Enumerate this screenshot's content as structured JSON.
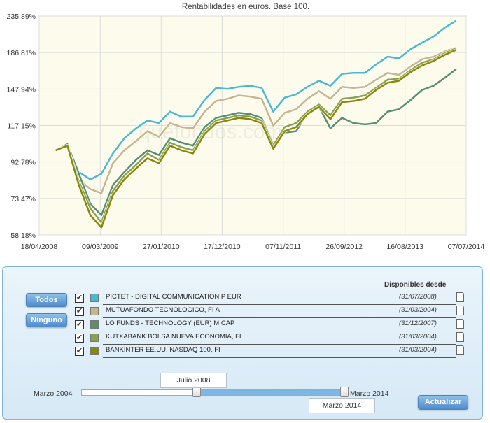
{
  "chart_data": {
    "type": "line",
    "title": "Rentabilidades en euros. Base 100.",
    "y_scale": "log",
    "ylim": [
      58.18,
      235.89
    ],
    "y_ticks": [
      "235.89%",
      "186.81%",
      "147.94%",
      "117.15%",
      "92.78%",
      "73.47%",
      "58.18%"
    ],
    "y_tick_values": [
      235.89,
      186.81,
      147.94,
      117.15,
      92.78,
      73.47,
      58.18
    ],
    "x_ticks": [
      "18/04/2008",
      "09/03/2009",
      "27/01/2010",
      "17/12/2010",
      "07/11/2011",
      "26/09/2012",
      "16/08/2013",
      "07/07/2014"
    ],
    "x_tick_dates": [
      "2008-04-18",
      "2009-03-09",
      "2010-01-27",
      "2010-12-17",
      "2011-11-07",
      "2012-09-26",
      "2013-08-16",
      "2014-07-07"
    ],
    "grid": true,
    "x": [
      "2008-07",
      "2008-09",
      "2008-11",
      "2009-01",
      "2009-03",
      "2009-05",
      "2009-07",
      "2009-09",
      "2009-11",
      "2010-01",
      "2010-03",
      "2010-05",
      "2010-07",
      "2010-09",
      "2010-11",
      "2011-01",
      "2011-03",
      "2011-05",
      "2011-07",
      "2011-09",
      "2011-11",
      "2012-01",
      "2012-03",
      "2012-05",
      "2012-07",
      "2012-09",
      "2012-11",
      "2013-01",
      "2013-03",
      "2013-05",
      "2013-07",
      "2013-09",
      "2013-11",
      "2014-01",
      "2014-03",
      "2014-05"
    ],
    "series": [
      {
        "name": "PICTET - DIGITAL COMMUNICATION P EUR",
        "color": "#4bb8cf",
        "values": [
          100,
          103,
          87,
          83,
          86,
          98,
          108,
          115,
          121,
          119,
          128,
          124,
          124,
          138,
          149,
          148,
          150,
          151,
          149,
          128,
          140,
          143,
          150,
          156,
          151,
          163,
          164,
          164,
          173,
          182,
          180,
          191,
          199,
          207,
          219,
          229
        ]
      },
      {
        "name": "MUTUAFONDO TECNOLOGICO, FI A",
        "color": "#c8b48d",
        "values": [
          100,
          103,
          83,
          78,
          76,
          92,
          100,
          106,
          113,
          109,
          119,
          116,
          115,
          128,
          137,
          139,
          142,
          141,
          139,
          117,
          127,
          130,
          139,
          146,
          139,
          150,
          149,
          150,
          157,
          164,
          162,
          171,
          179,
          182,
          188,
          193
        ]
      },
      {
        "name": "LO FUNDS - TECHNOLOGY (EUR) M CAP",
        "color": "#5a8f6d",
        "values": [
          100,
          104,
          86,
          71,
          66,
          80,
          87,
          94,
          100,
          97,
          108,
          105,
          103,
          116,
          123,
          125,
          127,
          126,
          123,
          104,
          112,
          113,
          127,
          132,
          115,
          123,
          119,
          118,
          119,
          128,
          130,
          138,
          147,
          151,
          159,
          168
        ]
      },
      {
        "name": "KUTXABANK BOLSA NUEVA ECONOMIA, FI",
        "color": "#8aa050",
        "values": [
          100,
          103,
          82,
          69,
          63,
          77,
          85,
          91,
          98,
          94,
          105,
          102,
          100,
          113,
          121,
          123,
          125,
          124,
          121,
          103,
          116,
          119,
          128,
          134,
          125,
          139,
          140,
          142,
          149,
          157,
          158,
          167,
          175,
          179,
          186,
          192
        ]
      },
      {
        "name": "BANKINTER EE.UU. NASDAQ 100, FI",
        "color": "#8a8a00",
        "values": [
          100,
          103,
          80,
          66,
          61,
          75,
          83,
          89,
          95,
          92,
          103,
          100,
          98,
          111,
          119,
          121,
          123,
          122,
          119,
          101,
          113,
          116,
          126,
          132,
          122,
          136,
          137,
          139,
          147,
          154,
          156,
          165,
          172,
          177,
          184,
          190
        ]
      }
    ]
  },
  "watermark": "quefondos.com",
  "panel": {
    "header_disponibles": "Disponibles desde",
    "buttons": {
      "todos": "Todos",
      "ninguno": "Ninguno",
      "actualizar": "Actualizar"
    },
    "funds": [
      {
        "name": "PICTET - DIGITAL COMMUNICATION P EUR",
        "date": "(31/07/2008)",
        "checked": "✔",
        "color": "#4bb8cf"
      },
      {
        "name": "MUTUAFONDO TECNOLOGICO, FI A",
        "date": "(31/03/2004)",
        "checked": "✔",
        "color": "#c8b48d"
      },
      {
        "name": "LO FUNDS - TECHNOLOGY (EUR) M CAP",
        "date": "(31/12/2007)",
        "checked": "✔",
        "color": "#5a8f6d"
      },
      {
        "name": "KUTXABANK BOLSA NUEVA ECONOMIA, FI",
        "date": "(31/03/2004)",
        "checked": "✔",
        "color": "#8aa050"
      },
      {
        "name": "BANKINTER EE.UU. NASDAQ 100, FI",
        "date": "(31/03/2004)",
        "checked": "✔",
        "color": "#8a8a00"
      }
    ],
    "range": {
      "min_label": "Marzo 2004",
      "max_label": "Marzo 2014",
      "start_value": "Julio 2008",
      "end_value": "Marzo 2014",
      "start_fraction": 0.44,
      "end_fraction": 1.0
    }
  }
}
